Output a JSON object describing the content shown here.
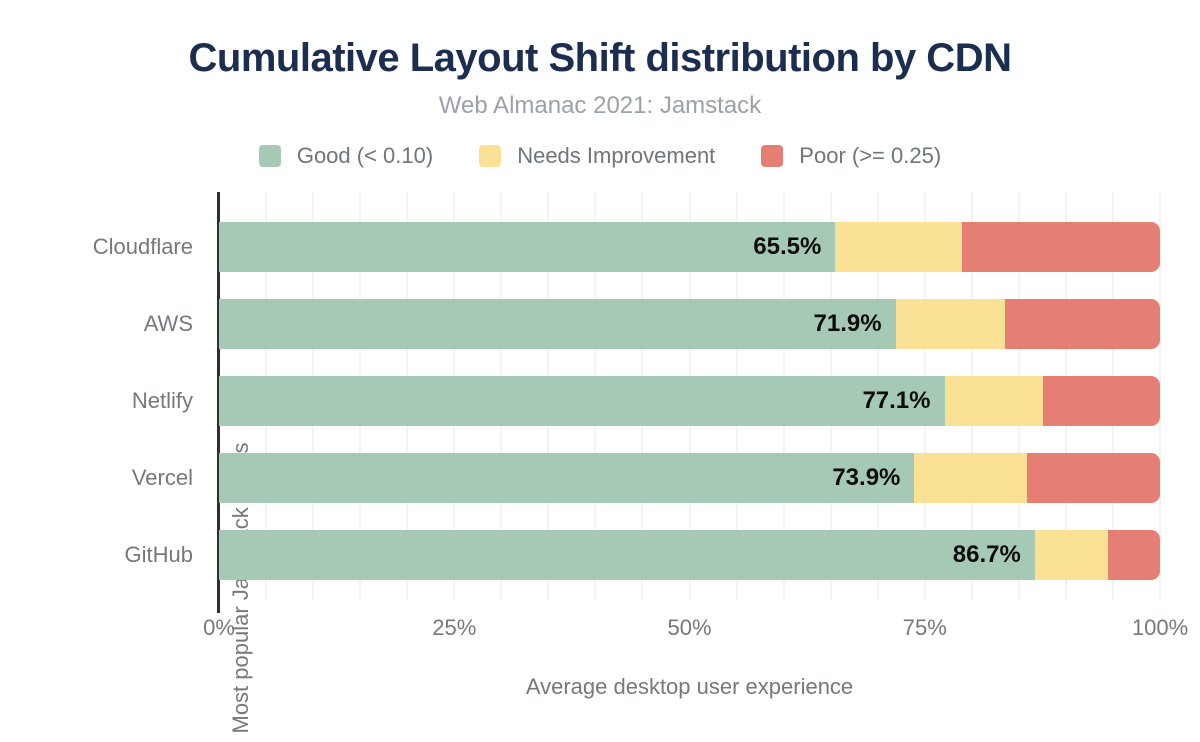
{
  "header": {
    "title": "Cumulative Layout Shift distribution by CDN",
    "subtitle": "Web Almanac 2021: Jamstack"
  },
  "colors": {
    "good": "#a6c9b6",
    "needs_improvement": "#fbe195",
    "poor": "#e57e73",
    "title_text": "#1b2e4f",
    "axis_text": "#75797d",
    "axis_line": "#2f2f2f",
    "gridline": "#f3f3f3",
    "value_label_text": "#0c0c0c"
  },
  "legend": {
    "items": [
      {
        "key": "good",
        "label": "Good (< 0.10)",
        "color": "#a6c9b6"
      },
      {
        "key": "needs-improvement",
        "label": "Needs Improvement",
        "color": "#fbe195"
      },
      {
        "key": "poor",
        "label": "Poor (>= 0.25)",
        "color": "#e57e73"
      }
    ]
  },
  "chart_data": {
    "type": "bar",
    "orientation": "horizontal",
    "stacked": true,
    "title": "Cumulative Layout Shift distribution by CDN",
    "subtitle": "Web Almanac 2021: Jamstack",
    "xlabel": "Average desktop user experience",
    "ylabel": "Most popular Jamstack CDNs",
    "categories": [
      "Cloudflare",
      "AWS",
      "Netlify",
      "Vercel",
      "GitHub"
    ],
    "series": [
      {
        "name": "Good (< 0.10)",
        "key": "good",
        "color": "#a6c9b6",
        "values": [
          65.5,
          71.9,
          77.1,
          73.9,
          86.7
        ]
      },
      {
        "name": "Needs Improvement",
        "key": "needs-improvement",
        "color": "#fbe195",
        "values": [
          13.5,
          11.6,
          10.5,
          12.0,
          7.8
        ]
      },
      {
        "name": "Poor (>= 0.25)",
        "key": "poor",
        "color": "#e57e73",
        "values": [
          21.0,
          16.5,
          12.4,
          14.1,
          5.5
        ]
      }
    ],
    "bar_labels": [
      "65.5%",
      "71.9%",
      "77.1%",
      "73.9%",
      "86.7%"
    ],
    "x_ticks": [
      "0%",
      "25%",
      "50%",
      "75%",
      "100%"
    ],
    "x_tick_values": [
      0,
      25,
      50,
      75,
      100
    ],
    "xlim": [
      0,
      100
    ],
    "grid": true,
    "grid_step_percent": 5,
    "legend_position": "top"
  }
}
